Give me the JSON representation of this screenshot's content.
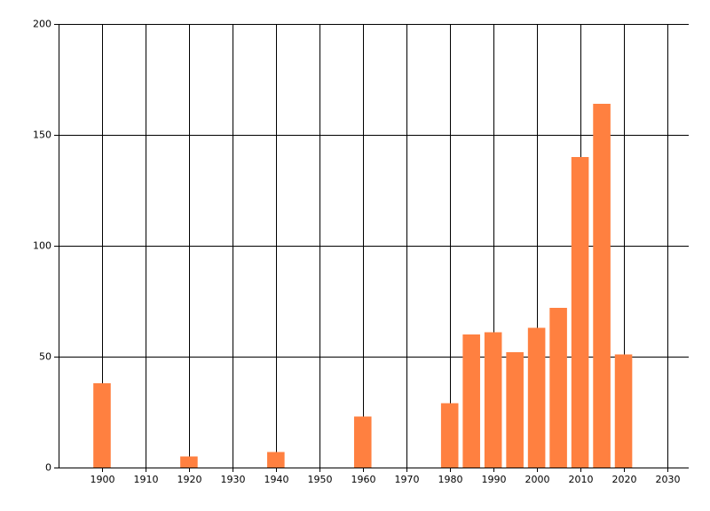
{
  "chart_data": {
    "type": "bar",
    "x": [
      1900,
      1920,
      1940,
      1960,
      1980,
      1985,
      1990,
      1995,
      2000,
      2005,
      2010,
      2015,
      2020
    ],
    "values": [
      38,
      5,
      7,
      23,
      29,
      60,
      61,
      52,
      63,
      72,
      140,
      164,
      51
    ],
    "color": "#ff8040",
    "xlim": [
      1890,
      2035
    ],
    "xticks": [
      1900,
      1910,
      1920,
      1930,
      1940,
      1950,
      1960,
      1970,
      1980,
      1990,
      2000,
      2010,
      2020,
      2030
    ],
    "ylim": [
      0,
      200
    ],
    "yticks": [
      0,
      50,
      100,
      150,
      200
    ],
    "grid": true
  }
}
